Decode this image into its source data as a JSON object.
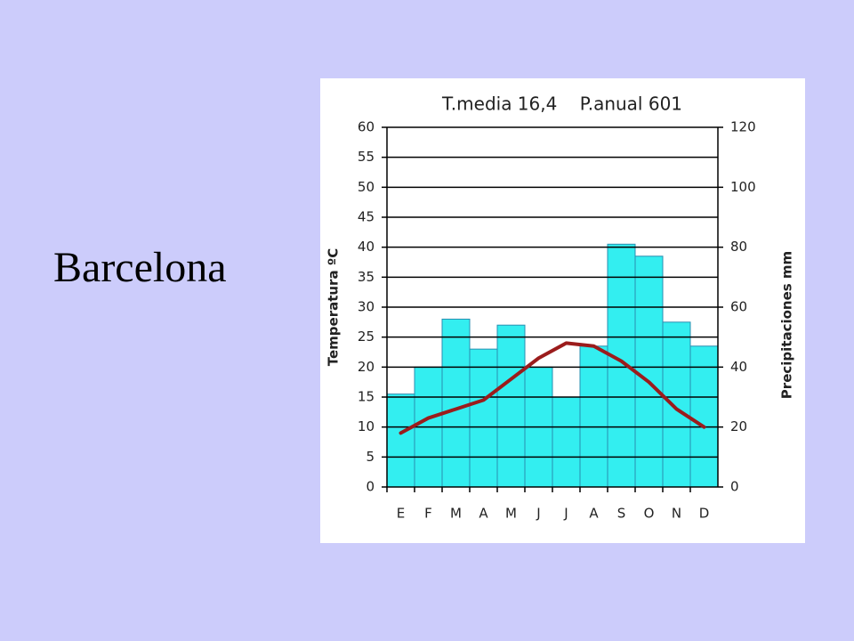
{
  "slide": {
    "title": "Barcelona"
  },
  "chart_data": {
    "type": "climograph",
    "title": "T.media 16,4    P.anual 601",
    "categories": [
      "E",
      "F",
      "M",
      "A",
      "M",
      "J",
      "J",
      "A",
      "S",
      "O",
      "N",
      "D"
    ],
    "y_label": "Temperatura ºC",
    "y2_label": "Precipitaciones mm",
    "ylim": [
      0,
      60
    ],
    "yticks": [
      0,
      5,
      10,
      15,
      20,
      25,
      30,
      35,
      40,
      45,
      50,
      55,
      60
    ],
    "y2lim": [
      0,
      120
    ],
    "y2ticks": [
      0,
      20,
      40,
      60,
      80,
      100,
      120
    ],
    "grid": true,
    "series": [
      {
        "type": "bar",
        "axis": "y2",
        "color": "#33eef0",
        "values": [
          31,
          40,
          56,
          46,
          54,
          40,
          30,
          47,
          81,
          77,
          55,
          47
        ]
      },
      {
        "type": "line",
        "axis": "y",
        "color": "#9b1c1c",
        "values": [
          9,
          11.5,
          13,
          14.5,
          18,
          21.5,
          24,
          23.5,
          21,
          17.5,
          13,
          10
        ]
      }
    ]
  }
}
